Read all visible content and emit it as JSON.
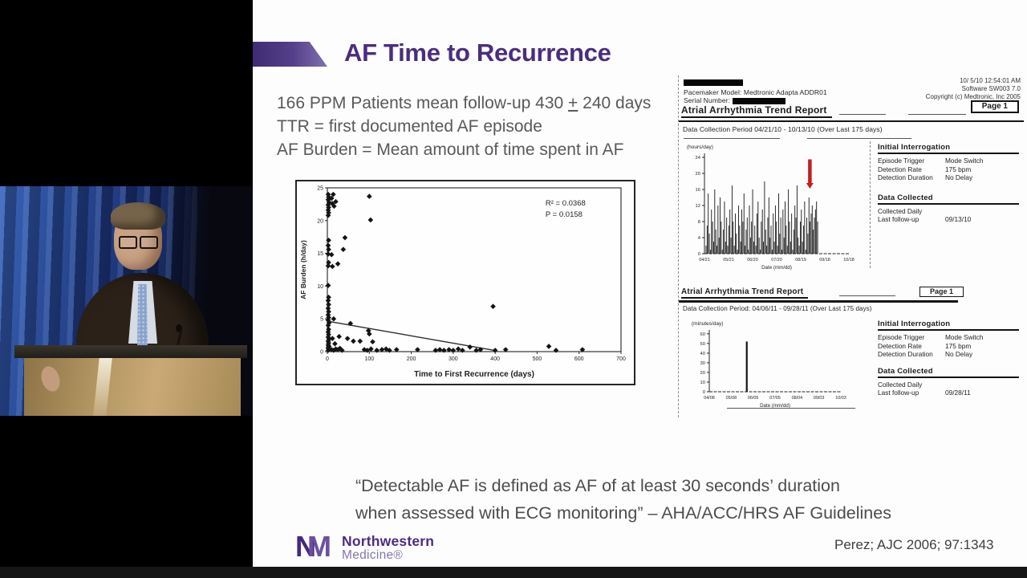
{
  "slide": {
    "title": "AF Time to Recurrence",
    "intro": {
      "line1_prefix": "166 PPM Patients mean follow-up 430 ",
      "line1_pm": "+",
      "line1_suffix": " 240 days",
      "line2": "TTR = first documented AF episode",
      "line3": "AF Burden = Mean amount of time spent in AF"
    },
    "quote_line1": "“Detectable AF is defined as AF of at least 30 seconds’ duration",
    "quote_line2": "when assessed with ECG monitoring” – AHA/ACC/HRS AF Guidelines",
    "citation": "Perez; AJC 2006; 97:1343",
    "logo": {
      "monogram_n": "N",
      "monogram_m": "M",
      "name": "Northwestern",
      "division": "Medicine®"
    }
  },
  "reports": [
    {
      "header": {
        "model_line": "Pacemaker Model: Medtronic  Adapta ADDR01",
        "serial_label": "Serial Number:",
        "title": "Atrial Arrhythmia Trend Report",
        "datetime": "10/ 5/10 12:54:01 AM",
        "software": "Software SW003 7.0",
        "copyright": "Copyright (c) Medtronic, Inc 2005",
        "page": "Page 1"
      },
      "collection_period": "Data Collection Period  04/21/10 - 10/13/10 (Over Last 175 days)",
      "interrogation": {
        "title": "Initial Interrogation",
        "rows": [
          [
            "Episode Trigger",
            "Mode Switch"
          ],
          [
            "Detection Rate",
            "175 bpm"
          ],
          [
            "Detection Duration",
            "No Delay"
          ]
        ]
      },
      "data_collected": {
        "title": "Data Collected",
        "rows": [
          [
            "Collected Daily",
            ""
          ],
          [
            "Last follow-up",
            "09/13/10"
          ]
        ]
      }
    },
    {
      "header": {
        "title": "Atrial Arrhythmia Trend Report",
        "page": "Page 1"
      },
      "collection_period": "Data Collection Period: 04/06/11 - 09/28/11 (Over Last 175 days)",
      "interrogation": {
        "title": "Initial Interrogation",
        "rows": [
          [
            "Episode Trigger",
            "Mode Switch"
          ],
          [
            "Detection Rate",
            "175 bpm"
          ],
          [
            "Detection Duration",
            "No Delay"
          ]
        ]
      },
      "data_collected": {
        "title": "Data Collected",
        "rows": [
          [
            "Collected Daily",
            ""
          ],
          [
            "Last follow-up",
            "09/28/11"
          ]
        ]
      }
    }
  ],
  "chart_data": [
    {
      "type": "scatter",
      "title": "",
      "xlabel": "Time to First Recurrence (days)",
      "ylabel": "AF Burden (h/day)",
      "xlim": [
        0,
        700
      ],
      "ylim": [
        0,
        25
      ],
      "xticks": [
        0,
        100,
        200,
        300,
        400,
        500,
        600,
        700
      ],
      "yticks": [
        0,
        5,
        10,
        15,
        20,
        25
      ],
      "annotations": [
        "R² = 0.0368",
        "P = 0.0158"
      ],
      "annotation_pos": [
        520,
        22.3
      ],
      "trendline": [
        [
          0,
          4.65
        ],
        [
          402,
          0.15
        ]
      ],
      "points": [
        [
          2,
          24
        ],
        [
          3,
          23.6
        ],
        [
          2,
          23.2
        ],
        [
          4,
          22.8
        ],
        [
          2,
          22.4
        ],
        [
          3,
          22
        ],
        [
          2,
          21.6
        ],
        [
          3,
          21.2
        ],
        [
          2,
          20.8
        ],
        [
          3,
          17
        ],
        [
          2,
          16.2
        ],
        [
          3,
          15.6
        ],
        [
          2,
          14.9
        ],
        [
          3,
          13.6
        ],
        [
          2,
          13.1
        ],
        [
          2,
          10.1
        ],
        [
          3,
          8.3
        ],
        [
          2,
          7.8
        ],
        [
          3,
          7.2
        ],
        [
          2,
          6.6
        ],
        [
          3,
          6.1
        ],
        [
          2,
          5.6
        ],
        [
          3,
          5.2
        ],
        [
          2,
          4.8
        ],
        [
          4,
          4.4
        ],
        [
          2,
          4
        ],
        [
          3,
          3.4
        ],
        [
          2,
          3
        ],
        [
          3,
          2.6
        ],
        [
          2,
          2.2
        ],
        [
          4,
          1.9
        ],
        [
          2,
          1.6
        ],
        [
          3,
          1.3
        ],
        [
          2,
          1
        ],
        [
          4,
          0.8
        ],
        [
          2,
          0.6
        ],
        [
          3,
          0.4
        ],
        [
          2,
          0.2
        ],
        [
          10,
          23.4
        ],
        [
          14,
          24
        ],
        [
          12,
          22.6
        ],
        [
          16,
          22.2
        ],
        [
          20,
          22.9
        ],
        [
          12,
          13
        ],
        [
          10,
          14.8
        ],
        [
          15,
          5
        ],
        [
          12,
          2
        ],
        [
          18,
          1.2
        ],
        [
          10,
          0.3
        ],
        [
          15,
          0.2
        ],
        [
          20,
          0.4
        ],
        [
          25,
          0.3
        ],
        [
          30,
          0.5
        ],
        [
          35,
          0.2
        ],
        [
          100,
          23.7
        ],
        [
          103,
          20.1
        ],
        [
          42,
          17.4
        ],
        [
          25,
          13.4
        ],
        [
          38,
          15.6
        ],
        [
          55,
          4.3
        ],
        [
          28,
          2.3
        ],
        [
          48,
          2
        ],
        [
          62,
          1.6
        ],
        [
          78,
          1.6
        ],
        [
          98,
          3.2
        ],
        [
          100,
          2.7
        ],
        [
          108,
          1.5
        ],
        [
          88,
          0.3
        ],
        [
          95,
          0.2
        ],
        [
          104,
          0.4
        ],
        [
          118,
          0.2
        ],
        [
          130,
          0.3
        ],
        [
          140,
          0.4
        ],
        [
          148,
          0.2
        ],
        [
          165,
          0.3
        ],
        [
          215,
          0.3
        ],
        [
          258,
          0.2
        ],
        [
          268,
          0.3
        ],
        [
          278,
          0.2
        ],
        [
          290,
          0.3
        ],
        [
          300,
          0.2
        ],
        [
          312,
          0.4
        ],
        [
          322,
          0.2
        ],
        [
          340,
          0.7
        ],
        [
          355,
          0.2
        ],
        [
          365,
          0.3
        ],
        [
          395,
          6.9
        ],
        [
          400,
          0.2
        ],
        [
          425,
          0.3
        ],
        [
          528,
          0.8
        ],
        [
          545,
          0.2
        ],
        [
          608,
          0.3
        ]
      ]
    },
    {
      "type": "bar",
      "ylabel": "(hours/day)",
      "xlabel": "Date (mm/dd)",
      "ylim": [
        0,
        25
      ],
      "yticks": [
        0,
        4,
        8,
        12,
        16,
        20,
        24
      ],
      "xticklabels": [
        "04/21",
        "05/21",
        "06/20",
        "07/20",
        "08/19",
        "09/18",
        "10/18"
      ],
      "bars_span_frac": 0.78,
      "values": [
        2,
        7,
        15,
        5,
        1,
        11,
        8,
        3,
        16,
        6,
        2,
        12,
        4,
        14,
        8,
        1,
        6,
        13,
        3,
        9,
        2,
        7,
        11,
        4,
        17,
        8,
        2,
        10,
        5,
        1,
        12,
        7,
        3,
        11,
        8,
        15,
        2,
        6,
        9,
        1,
        12,
        4,
        8,
        16,
        3,
        7,
        2,
        10,
        13,
        4,
        1,
        8,
        11,
        3,
        18,
        6,
        2,
        9,
        14,
        4,
        7,
        1,
        10,
        3,
        12,
        8,
        2,
        15,
        5,
        9,
        1,
        11,
        4,
        13,
        7,
        2,
        16,
        8,
        3,
        10,
        1,
        6,
        12,
        9,
        17,
        4,
        2,
        8,
        11,
        3,
        7,
        13,
        1,
        9,
        5,
        14,
        8,
        10,
        12,
        6,
        9,
        11,
        13,
        8
      ],
      "arrow": {
        "x_frac": 0.73,
        "from": 23.5,
        "to": 16.8,
        "color": "#c21f1f"
      }
    },
    {
      "type": "bar",
      "ylabel": "(minutes/day)",
      "xlabel": "Date (mm/dd)",
      "ylim": [
        0,
        64
      ],
      "yticks": [
        0,
        10,
        20,
        30,
        40,
        50,
        60
      ],
      "xticklabels": [
        "04/08",
        "05/08",
        "06/05",
        "07/05",
        "08/04",
        "09/03",
        "10/03"
      ],
      "spikes": [
        {
          "x_frac": 0.285,
          "value": 52
        }
      ]
    }
  ]
}
